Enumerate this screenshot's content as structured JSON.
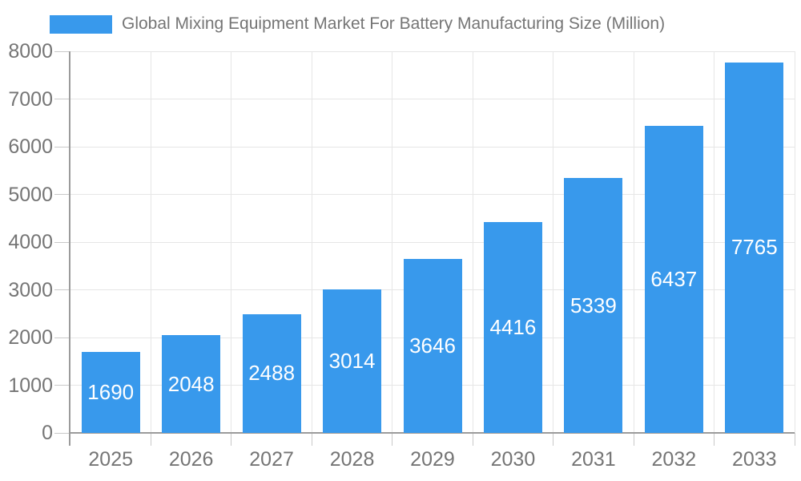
{
  "chart_data": {
    "type": "bar",
    "title": "Global Mixing Equipment Market For Battery Manufacturing Size (Million)",
    "categories": [
      "2025",
      "2026",
      "2027",
      "2028",
      "2029",
      "2030",
      "2031",
      "2032",
      "2033"
    ],
    "values": [
      1690,
      2048,
      2488,
      3014,
      3646,
      4416,
      5339,
      6437,
      7765
    ],
    "bar_labels": [
      "1690",
      "2048",
      "2488",
      "3014",
      "3646",
      "4416",
      "5339",
      "6437",
      "7765"
    ],
    "xlabel": "",
    "ylabel": "",
    "ylim": [
      0,
      8000
    ],
    "yticks": [
      0,
      1000,
      2000,
      3000,
      4000,
      5000,
      6000,
      7000,
      8000
    ],
    "grid": "on",
    "legend_position": "top-left",
    "colors": {
      "bar": "#3899ec",
      "bar_label_text": "#ffffff",
      "axis_text": "#757575",
      "title_text": "#757575",
      "gridline": "#e6e6e6",
      "axis_line": "#9b9b9b",
      "tick": "#c9c9c9",
      "background": "#ffffff"
    }
  }
}
